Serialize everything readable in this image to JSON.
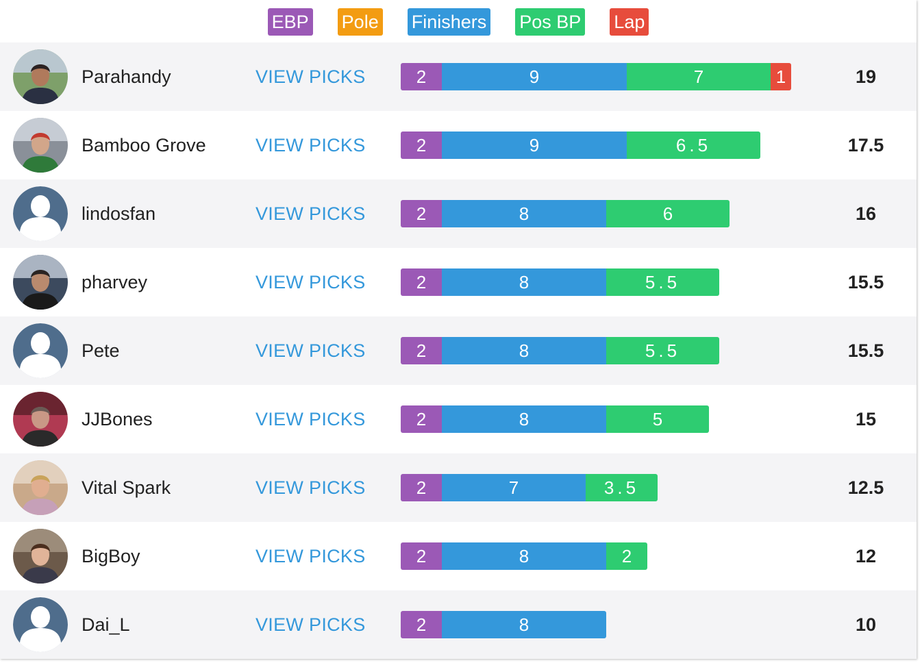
{
  "legend": [
    {
      "label": "EBP",
      "color": "#9b59b6"
    },
    {
      "label": "Pole",
      "color": "#f39c12"
    },
    {
      "label": "Finishers",
      "color": "#3498db"
    },
    {
      "label": "Pos BP",
      "color": "#2ecc71"
    },
    {
      "label": "Lap",
      "color": "#e74c3c"
    }
  ],
  "view_picks_label": "VIEW PICKS",
  "rows": [
    {
      "name": "Parahandy",
      "avatar": "photo-man-glasses",
      "ebp": "2",
      "finishers": "9",
      "pos_bp": "7",
      "lap": "1",
      "total": "19"
    },
    {
      "name": "Bamboo Grove",
      "avatar": "photo-man-scarf",
      "ebp": "2",
      "finishers": "9",
      "pos_bp": "6.5",
      "lap": "",
      "total": "17.5"
    },
    {
      "name": "lindosfan",
      "avatar": "default-user-icon",
      "ebp": "2",
      "finishers": "8",
      "pos_bp": "6",
      "lap": "",
      "total": "16"
    },
    {
      "name": "pharvey",
      "avatar": "photo-man-waterfront",
      "ebp": "2",
      "finishers": "8",
      "pos_bp": "5.5",
      "lap": "",
      "total": "15.5"
    },
    {
      "name": "Pete",
      "avatar": "default-user-icon",
      "ebp": "2",
      "finishers": "8",
      "pos_bp": "5.5",
      "lap": "",
      "total": "15.5"
    },
    {
      "name": "JJBones",
      "avatar": "photo-man-glasses-red",
      "ebp": "2",
      "finishers": "8",
      "pos_bp": "5",
      "lap": "",
      "total": "15"
    },
    {
      "name": "Vital Spark",
      "avatar": "photo-woman-blonde",
      "ebp": "2",
      "finishers": "7",
      "pos_bp": "3.5",
      "lap": "",
      "total": "12.5"
    },
    {
      "name": "BigBoy",
      "avatar": "photo-man-curly-hair",
      "ebp": "2",
      "finishers": "8",
      "pos_bp": "2",
      "lap": "",
      "total": "12"
    },
    {
      "name": "Dai_L",
      "avatar": "default-user-icon",
      "ebp": "2",
      "finishers": "8",
      "pos_bp": "",
      "lap": "",
      "total": "10"
    }
  ]
}
